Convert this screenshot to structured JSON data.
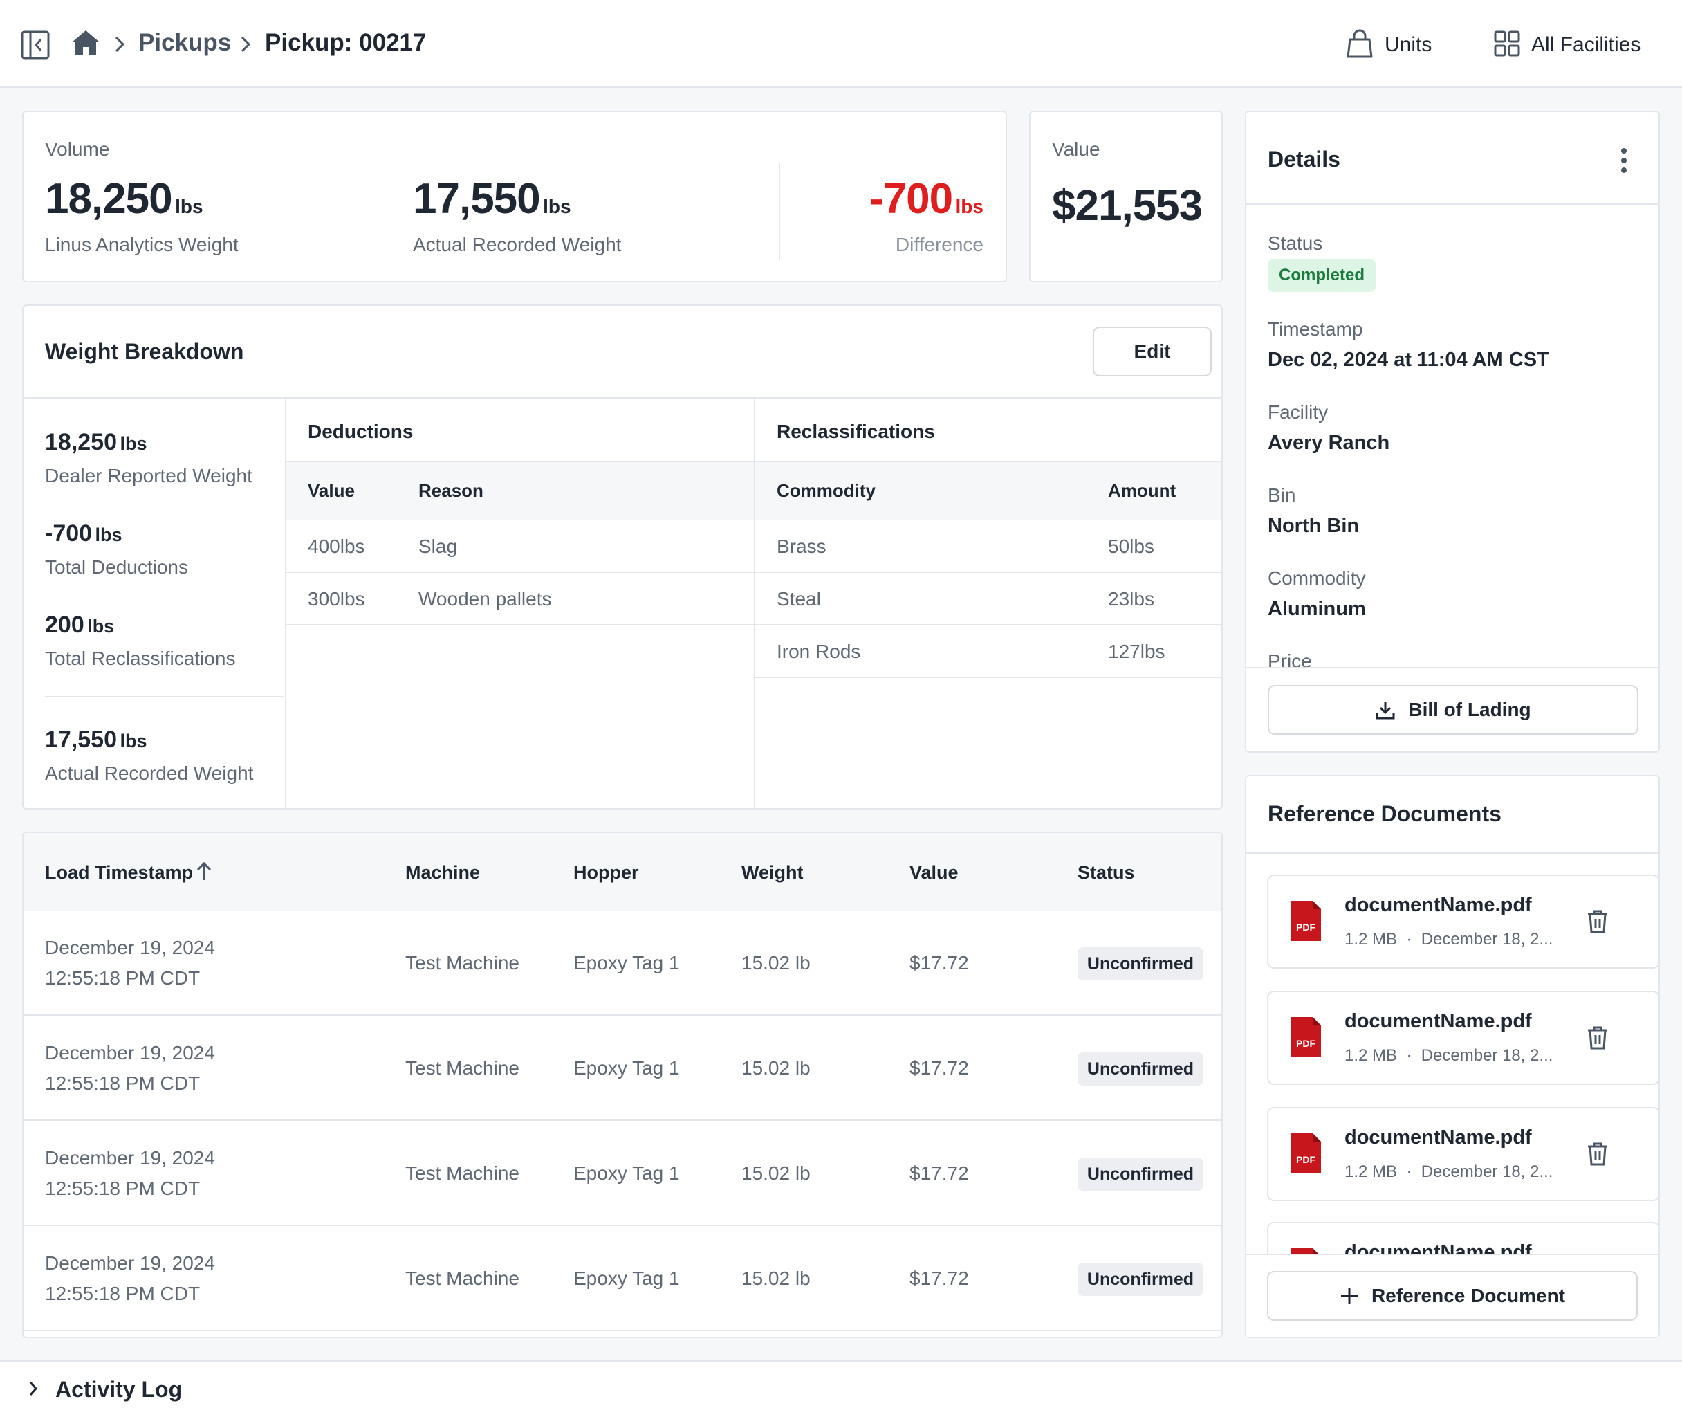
{
  "header": {
    "breadcrumb": [
      "Pickups",
      "Pickup: 00217"
    ],
    "units_label": "Units",
    "facilities_label": "All Facilities"
  },
  "summary": {
    "volume_label": "Volume",
    "linus_weight": "18,250",
    "linus_label": "Linus Analytics Weight",
    "actual_weight": "17,550",
    "actual_label": "Actual Recorded Weight",
    "difference": "-700",
    "difference_label": "Difference",
    "unit": "lbs",
    "value_label": "Value",
    "value": "$21,553"
  },
  "breakdown": {
    "title": "Weight Breakdown",
    "edit_label": "Edit",
    "stats": [
      {
        "value": "18,250",
        "unit": "lbs",
        "label": "Dealer Reported Weight"
      },
      {
        "value": "-700",
        "unit": "lbs",
        "label": "Total Deductions"
      },
      {
        "value": "200",
        "unit": "lbs",
        "label": "Total Reclassifications"
      },
      {
        "value": "17,550",
        "unit": "lbs",
        "label": "Actual Recorded Weight"
      }
    ],
    "deductions": {
      "title": "Deductions",
      "headers": [
        "Value",
        "Reason"
      ],
      "rows": [
        [
          "400lbs",
          "Slag"
        ],
        [
          "300lbs",
          "Wooden pallets"
        ]
      ]
    },
    "reclassifications": {
      "title": "Reclassifications",
      "headers": [
        "Commodity",
        "Amount"
      ],
      "rows": [
        [
          "Brass",
          "50lbs"
        ],
        [
          "Steal",
          "23lbs"
        ],
        [
          "Iron Rods",
          "127lbs"
        ]
      ]
    }
  },
  "loads": {
    "headers": [
      "Load Timestamp",
      "Machine",
      "Hopper",
      "Weight",
      "Value",
      "Status"
    ],
    "rows": [
      {
        "date": "December 19, 2024",
        "time": "12:55:18 PM CDT",
        "machine": "Test Machine",
        "hopper": "Epoxy Tag 1",
        "weight": "15.02 lb",
        "value": "$17.72",
        "status": "Unconfirmed"
      },
      {
        "date": "December 19, 2024",
        "time": "12:55:18 PM CDT",
        "machine": "Test Machine",
        "hopper": "Epoxy Tag 1",
        "weight": "15.02 lb",
        "value": "$17.72",
        "status": "Unconfirmed"
      },
      {
        "date": "December 19, 2024",
        "time": "12:55:18 PM CDT",
        "machine": "Test Machine",
        "hopper": "Epoxy Tag 1",
        "weight": "15.02 lb",
        "value": "$17.72",
        "status": "Unconfirmed"
      },
      {
        "date": "December 19, 2024",
        "time": "12:55:18 PM CDT",
        "machine": "Test Machine",
        "hopper": "Epoxy Tag 1",
        "weight": "15.02 lb",
        "value": "$17.72",
        "status": "Unconfirmed"
      }
    ]
  },
  "details": {
    "title": "Details",
    "status_label": "Status",
    "status": "Completed",
    "timestamp_label": "Timestamp",
    "timestamp": "Dec 02, 2024 at 11:04 AM CST",
    "facility_label": "Facility",
    "facility": "Avery Ranch",
    "bin_label": "Bin",
    "bin": "North Bin",
    "commodity_label": "Commodity",
    "commodity": "Aluminum",
    "price_label": "Price",
    "bol_label": "Bill of Lading"
  },
  "documents": {
    "title": "Reference Documents",
    "items": [
      {
        "name": "documentName.pdf",
        "size": "1.2 MB",
        "date": "December 18, 2..."
      },
      {
        "name": "documentName.pdf",
        "size": "1.2 MB",
        "date": "December 18, 2..."
      },
      {
        "name": "documentName.pdf",
        "size": "1.2 MB",
        "date": "December 18, 2..."
      },
      {
        "name": "documentName.pdf"
      }
    ],
    "add_label": "Reference Document"
  },
  "activity": {
    "title": "Activity Log"
  },
  "colors": {
    "negative": "#e01e1e",
    "success_bg": "#dcf5e4",
    "success_text": "#1b7a3d",
    "pdf_red": "#c8161d"
  }
}
